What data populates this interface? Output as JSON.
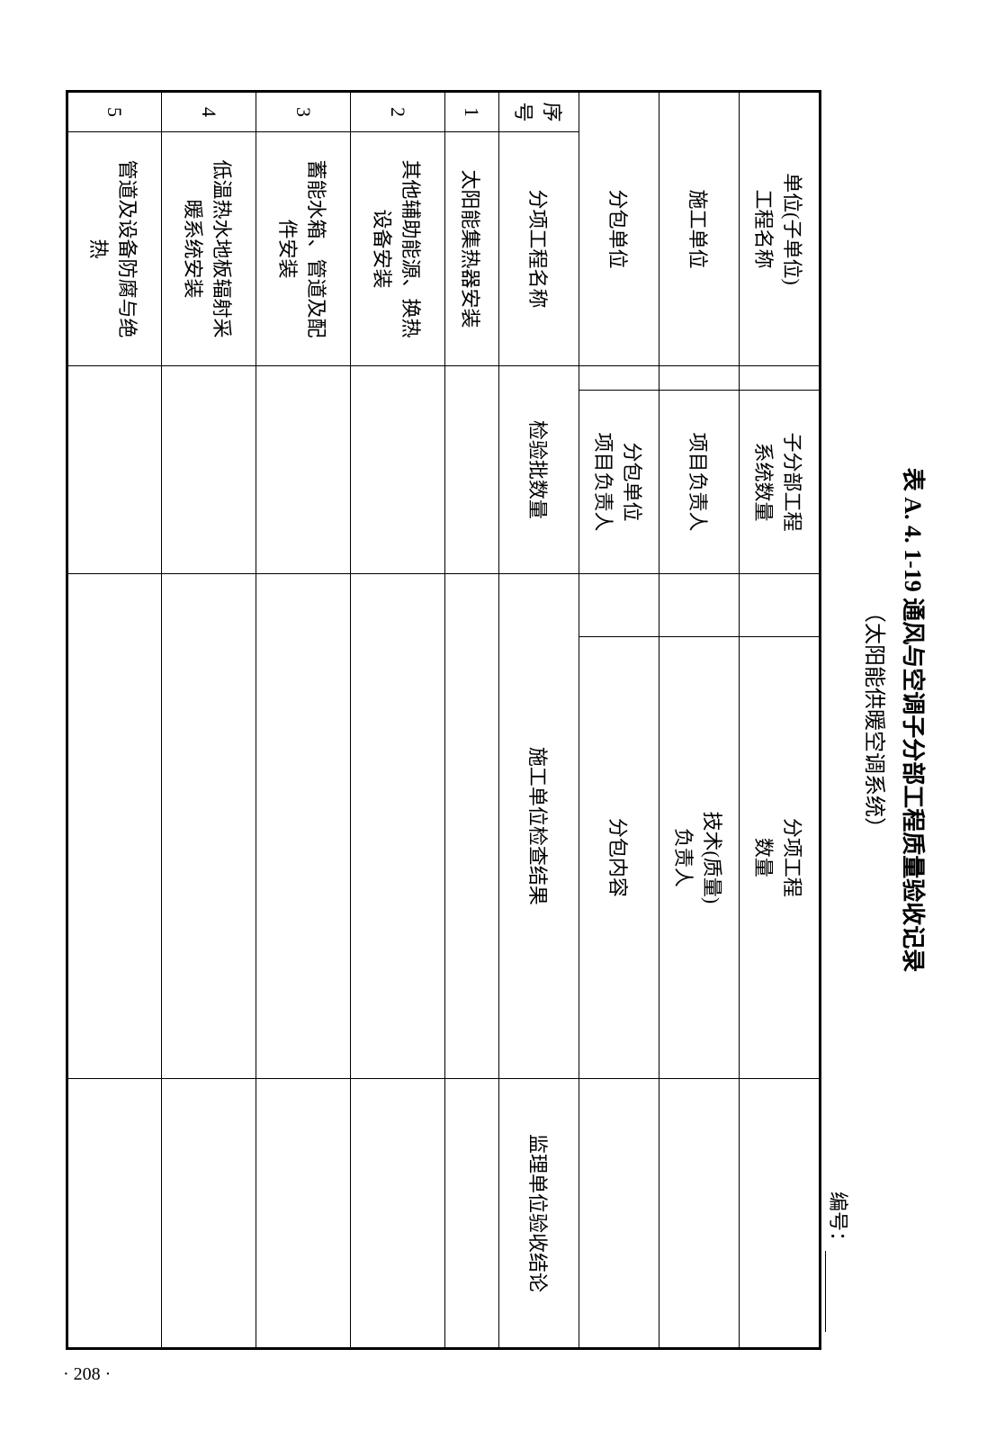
{
  "page_number": "· 208 ·",
  "title": {
    "table_ref": "表 A. 4. 1-19",
    "main": "通风与空调子分部工程质量验收记录",
    "sub": "（太阳能供暖空调系统）"
  },
  "form_number_label": "编号：",
  "header": {
    "row1": {
      "unit_project": "单位(子单位)\n工程名称",
      "sub_division": "子分部工程\n系统数量",
      "sub_item_qty": "分项工程\n数量"
    },
    "row2": {
      "construction_unit": "施工单位",
      "project_manager": "项目负责人",
      "tech_quality_manager": "技术(质量)\n负责人"
    },
    "row3": {
      "subcontract_unit": "分包单位",
      "subcontract_manager": "分包单位\n项目负责人",
      "subcontract_content": "分包内容"
    },
    "row4": {
      "seq": "序号",
      "item_name": "分项工程名称",
      "batch_qty": "检验批数量",
      "construction_result": "施工单位检查结果",
      "supervision_conclusion": "监理单位验收结论"
    }
  },
  "rows": [
    {
      "seq": "1",
      "name": "太阳能集热器安装",
      "qty": "",
      "result": "",
      "conclusion": ""
    },
    {
      "seq": "2",
      "name": "其他辅助能源、换热\n设备安装",
      "qty": "",
      "result": "",
      "conclusion": ""
    },
    {
      "seq": "3",
      "name": "蓄能水箱、管道及配\n件安装",
      "qty": "",
      "result": "",
      "conclusion": ""
    },
    {
      "seq": "4",
      "name": "低温热水地板辐射采\n暖系统安装",
      "qty": "",
      "result": "",
      "conclusion": ""
    },
    {
      "seq": "5",
      "name": "管道及设备防腐与绝\n热",
      "qty": "",
      "result": "",
      "conclusion": ""
    }
  ],
  "styling": {
    "font_family": "SimSun",
    "border_color": "#000000",
    "background_color": "#ffffff",
    "outer_border_width": 3,
    "inner_border_width": 1.5,
    "title_fontsize": 26,
    "subtitle_fontsize": 24,
    "cell_fontsize": 22
  }
}
